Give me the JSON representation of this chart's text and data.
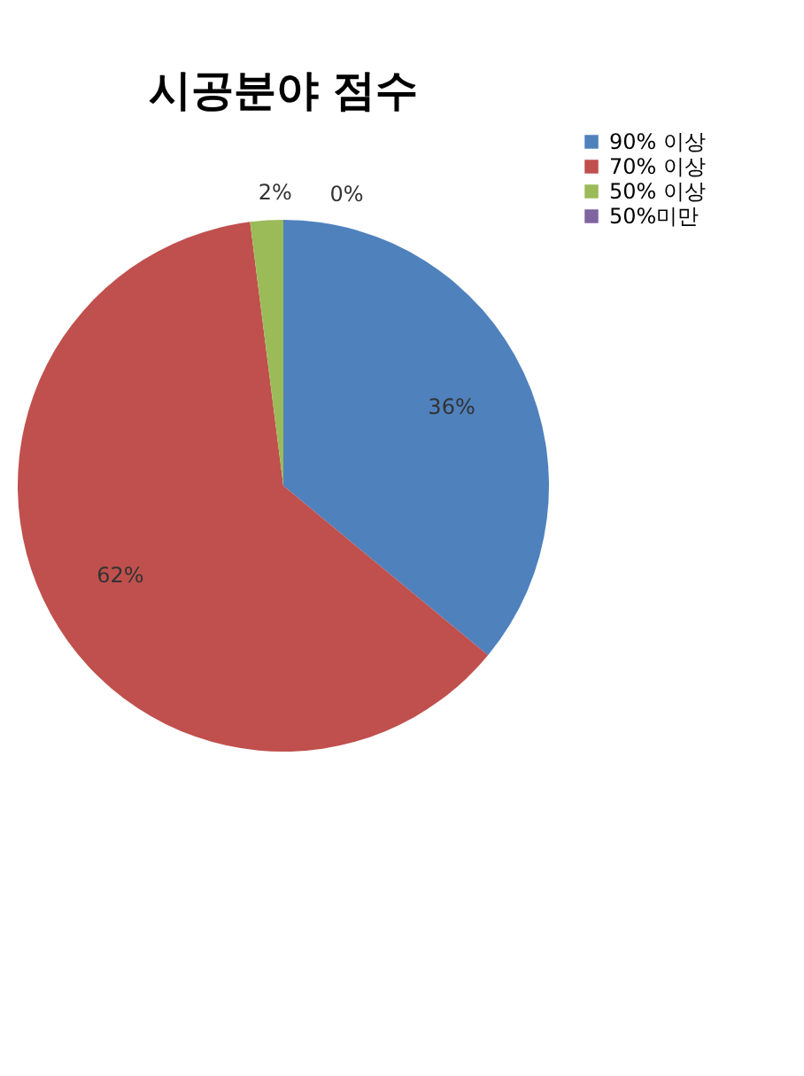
{
  "chart_data": {
    "type": "pie",
    "title": "시공분야 점수",
    "categories": [
      "90% 이상",
      "70% 이상",
      "50% 이상",
      "50%미만"
    ],
    "values": [
      36,
      62,
      2,
      0
    ],
    "colors": [
      "#4f81bd",
      "#c0504d",
      "#9bbb59",
      "#8064a2"
    ],
    "value_labels": [
      "36%",
      "62%",
      "2%",
      "0%"
    ],
    "legend": "right"
  }
}
